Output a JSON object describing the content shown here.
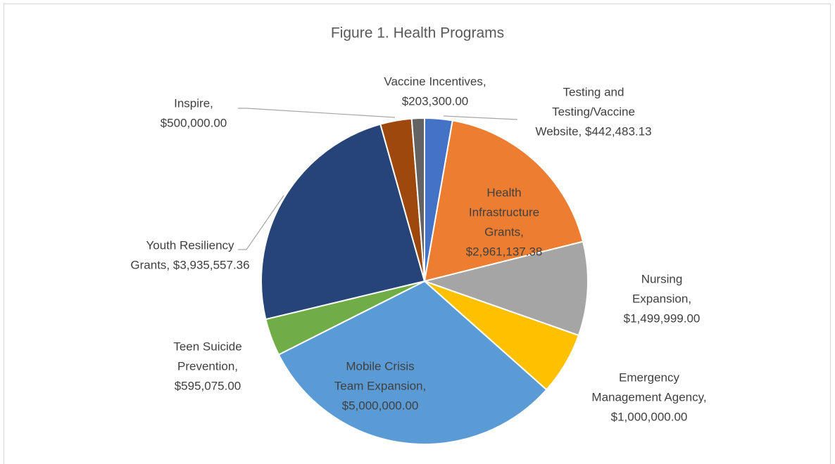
{
  "chart_data": {
    "type": "pie",
    "title": "Figure 1. Health Programs",
    "values": [
      442483.13,
      2961137.38,
      1499999.0,
      1000000.0,
      5000000.0,
      595075.0,
      3935557.36,
      500000.0,
      203300.0
    ],
    "data_labels": [
      [
        "Testing and",
        "Testing/Vaccine",
        "Website, $442,483.13"
      ],
      [
        "Health",
        "Infrastructure",
        "Grants,",
        "$2,961,137.38"
      ],
      [
        "Nursing",
        "Expansion,",
        "$1,499,999.00"
      ],
      [
        "Emergency",
        "Management Agency,",
        "$1,000,000.00"
      ],
      [
        "Mobile Crisis",
        "Team Expansion,",
        "$5,000,000.00"
      ],
      [
        "Teen Suicide",
        "Prevention,",
        "$595,075.00"
      ],
      [
        "Youth Resiliency",
        "Grants, $3,935,557.36"
      ],
      [
        "Inspire,",
        "$500,000.00"
      ],
      [
        "Vaccine Incentives,",
        "$203,300.00"
      ]
    ],
    "colors": [
      "#4472c4",
      "#ed7d31",
      "#a5a5a5",
      "#ffc000",
      "#5b9bd5",
      "#70ad47",
      "#264478",
      "#9e480e",
      "#636363"
    ]
  }
}
